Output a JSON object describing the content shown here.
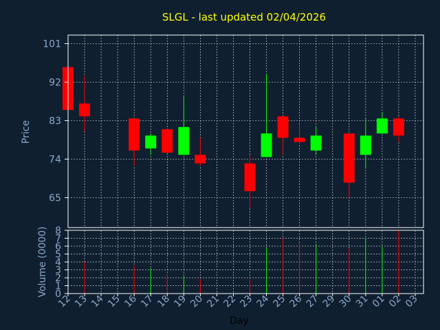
{
  "chart_data": {
    "type": "candlestick",
    "title": "SLGL - last updated 02/04/2026",
    "xlabel": "Day",
    "colors": {
      "background": "#0f1f30",
      "axis_text": "#8aa8c8",
      "title": "#ffff00",
      "up": "#00ff00",
      "down": "#ff0000",
      "grid": "#cccccc",
      "frame": "#ffffff"
    },
    "x_ticks": [
      "12",
      "13",
      "14",
      "15",
      "16",
      "17",
      "18",
      "19",
      "20",
      "21",
      "22",
      "23",
      "24",
      "25",
      "26",
      "27",
      "29",
      "30",
      "31",
      "01",
      "02",
      "03"
    ],
    "price_panel": {
      "ylabel": "Price",
      "ylim": [
        58,
        103
      ],
      "y_ticks": [
        101,
        92,
        83,
        74,
        65
      ],
      "candles": [
        {
          "day": "12",
          "open": 95.5,
          "high": 95.5,
          "low": 85.5,
          "close": 85.5
        },
        {
          "day": "13",
          "open": 87.0,
          "high": 93.5,
          "low": 80.5,
          "close": 84.0
        },
        {
          "day": "16",
          "open": 83.5,
          "high": 83.5,
          "low": 72.5,
          "close": 76.0
        },
        {
          "day": "17",
          "open": 76.5,
          "high": 80.0,
          "low": 75.0,
          "close": 79.5
        },
        {
          "day": "18",
          "open": 81.0,
          "high": 81.0,
          "low": 75.5,
          "close": 75.5
        },
        {
          "day": "19",
          "open": 75.0,
          "high": 88.5,
          "low": 75.0,
          "close": 81.5
        },
        {
          "day": "20",
          "open": 75.0,
          "high": 79.0,
          "low": 72.5,
          "close": 73.0
        },
        {
          "day": "23",
          "open": 73.0,
          "high": 75.0,
          "low": 62.5,
          "close": 66.5
        },
        {
          "day": "24",
          "open": 74.5,
          "high": 94.0,
          "low": 74.5,
          "close": 80.0
        },
        {
          "day": "25",
          "open": 84.0,
          "high": 84.0,
          "low": 75.0,
          "close": 79.0
        },
        {
          "day": "26",
          "open": 79.0,
          "high": 82.0,
          "low": 77.5,
          "close": 78.0
        },
        {
          "day": "27",
          "open": 76.0,
          "high": 81.5,
          "low": 75.0,
          "close": 79.5
        },
        {
          "day": "30",
          "open": 80.0,
          "high": 80.0,
          "low": 65.0,
          "close": 68.5
        },
        {
          "day": "31",
          "open": 75.0,
          "high": 83.5,
          "low": 72.0,
          "close": 79.5
        },
        {
          "day": "01",
          "open": 80.0,
          "high": 85.0,
          "low": 80.0,
          "close": 83.5
        },
        {
          "day": "02",
          "open": 83.5,
          "high": 84.0,
          "low": 78.0,
          "close": 79.5
        }
      ]
    },
    "volume_panel": {
      "ylabel": "Volume (0000)",
      "ylim": [
        0,
        8
      ],
      "y_ticks": [
        0,
        1,
        2,
        3,
        4,
        5,
        6,
        7,
        8
      ],
      "bars": [
        {
          "day": "13",
          "value": 4.0,
          "direction": "down"
        },
        {
          "day": "16",
          "value": 3.5,
          "direction": "down"
        },
        {
          "day": "17",
          "value": 3.2,
          "direction": "up"
        },
        {
          "day": "18",
          "value": 2.5,
          "direction": "down"
        },
        {
          "day": "19",
          "value": 2.2,
          "direction": "up"
        },
        {
          "day": "20",
          "value": 1.8,
          "direction": "down"
        },
        {
          "day": "23",
          "value": 1.8,
          "direction": "down"
        },
        {
          "day": "24",
          "value": 5.8,
          "direction": "up"
        },
        {
          "day": "25",
          "value": 7.0,
          "direction": "down"
        },
        {
          "day": "26",
          "value": 6.5,
          "direction": "down"
        },
        {
          "day": "27",
          "value": 6.3,
          "direction": "up"
        },
        {
          "day": "30",
          "value": 5.7,
          "direction": "down"
        },
        {
          "day": "31",
          "value": 7.0,
          "direction": "up"
        },
        {
          "day": "01",
          "value": 5.9,
          "direction": "up"
        },
        {
          "day": "02",
          "value": 8.0,
          "direction": "down"
        }
      ]
    }
  }
}
